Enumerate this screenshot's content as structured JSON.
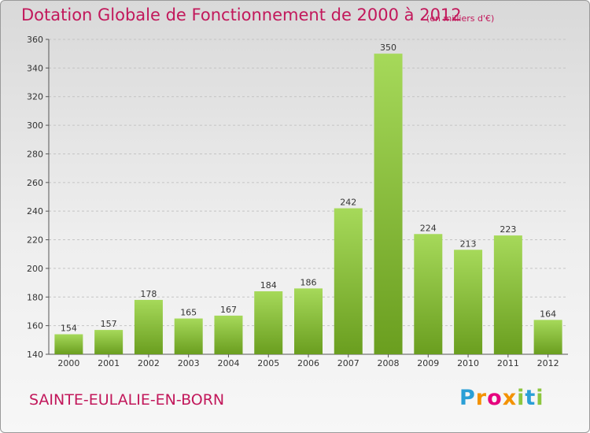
{
  "title": "Dotation Globale de Fonctionnement de 2000 à 2012",
  "subtitle": "(en milliers d'€)",
  "commune": "SAINTE-EULALIE-EN-BORN",
  "logo": {
    "letters": [
      "P",
      "r",
      "o",
      "x",
      "i",
      "t",
      "i"
    ],
    "colors": [
      "#2a9fd6",
      "#f39200",
      "#e6007e",
      "#f39200",
      "#8dc63f",
      "#2a9fd6",
      "#8dc63f"
    ]
  },
  "colors": {
    "bar_light": "#a6d95a",
    "bar_dark": "#6a9e1f",
    "title": "#c2185b"
  },
  "chart_data": {
    "type": "bar",
    "title": "Dotation Globale de Fonctionnement de 2000 à 2012",
    "subtitle": "(en milliers d'€)",
    "categories": [
      "2000",
      "2001",
      "2002",
      "2003",
      "2004",
      "2005",
      "2006",
      "2007",
      "2008",
      "2009",
      "2010",
      "2011",
      "2012"
    ],
    "values": [
      154,
      157,
      178,
      165,
      167,
      184,
      186,
      242,
      350,
      224,
      213,
      223,
      164
    ],
    "ylim": [
      140,
      360
    ],
    "yticks": [
      140,
      160,
      180,
      200,
      220,
      240,
      260,
      280,
      300,
      320,
      340,
      360
    ],
    "grid": true,
    "xlabel": "",
    "ylabel": ""
  }
}
